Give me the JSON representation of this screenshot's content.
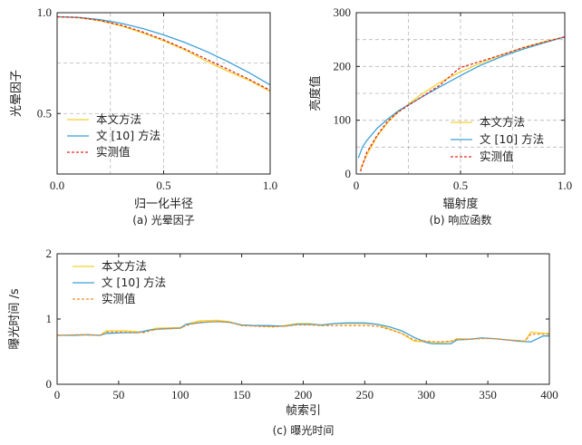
{
  "chart_data": [
    {
      "type": "line",
      "id": "a",
      "caption": "(a) 光晕因子",
      "xlabel": "归一化半径",
      "ylabel": "光晕因子",
      "xlim": [
        0,
        1
      ],
      "ylim": [
        0.2,
        1.0
      ],
      "xticks": [
        "0.0",
        "0.5",
        "1.0"
      ],
      "xtick_values": [
        0,
        0.5,
        1
      ],
      "yticks": [
        "0.5",
        "1.0"
      ],
      "ytick_values": [
        0.5,
        1.0
      ],
      "grid": true,
      "legend_position": "bottom-left",
      "series": [
        {
          "name": "本文方法",
          "color": "#f2d22e",
          "dash": false,
          "x": [
            0,
            0.1,
            0.2,
            0.3,
            0.4,
            0.5,
            0.6,
            0.7,
            0.8,
            0.9,
            1.0
          ],
          "y": [
            0.98,
            0.975,
            0.96,
            0.935,
            0.9,
            0.86,
            0.815,
            0.76,
            0.71,
            0.665,
            0.61
          ]
        },
        {
          "name": "文 [10] 方法",
          "color": "#3fa0d8",
          "dash": false,
          "x": [
            0,
            0.1,
            0.2,
            0.3,
            0.4,
            0.5,
            0.6,
            0.7,
            0.8,
            0.9,
            1.0
          ],
          "y": [
            0.98,
            0.977,
            0.966,
            0.948,
            0.922,
            0.89,
            0.852,
            0.808,
            0.758,
            0.703,
            0.642
          ]
        },
        {
          "name": "实测值",
          "color": "#e0281e",
          "dash": true,
          "x": [
            0,
            0.1,
            0.2,
            0.3,
            0.4,
            0.5,
            0.6,
            0.7,
            0.8,
            0.9,
            1.0
          ],
          "y": [
            0.98,
            0.976,
            0.962,
            0.938,
            0.905,
            0.865,
            0.82,
            0.77,
            0.72,
            0.67,
            0.615
          ]
        }
      ]
    },
    {
      "type": "line",
      "id": "b",
      "caption": "(b) 响应函数",
      "xlabel": "辐射度",
      "ylabel": "亮度值",
      "xlim": [
        0,
        1
      ],
      "ylim": [
        0,
        300
      ],
      "xticks": [
        "0",
        "0.5",
        "1.0"
      ],
      "xtick_values": [
        0,
        0.5,
        1
      ],
      "yticks": [
        "0",
        "100",
        "200",
        "300"
      ],
      "ytick_values": [
        0,
        100,
        200,
        300
      ],
      "grid": true,
      "legend_position": "bottom-right",
      "series": [
        {
          "name": "本文方法",
          "color": "#f2d22e",
          "dash": false,
          "x": [
            0.02,
            0.05,
            0.1,
            0.15,
            0.2,
            0.3,
            0.4,
            0.5,
            0.6,
            0.7,
            0.8,
            0.9,
            1.0
          ],
          "y": [
            10,
            35,
            70,
            95,
            115,
            145,
            170,
            190,
            207,
            222,
            235,
            246,
            255
          ]
        },
        {
          "name": "文 [10] 方法",
          "color": "#3fa0d8",
          "dash": false,
          "x": [
            0.01,
            0.03,
            0.05,
            0.1,
            0.15,
            0.2,
            0.3,
            0.4,
            0.5,
            0.6,
            0.7,
            0.8,
            0.9,
            1.0
          ],
          "y": [
            30,
            50,
            62,
            85,
            102,
            117,
            140,
            162,
            183,
            203,
            219,
            232,
            244,
            255
          ]
        },
        {
          "name": "实测值",
          "color": "#e0281e",
          "dash": true,
          "x": [
            0.02,
            0.05,
            0.1,
            0.15,
            0.2,
            0.3,
            0.4,
            0.48,
            0.5,
            0.6,
            0.7,
            0.8,
            0.9,
            1.0
          ],
          "y": [
            5,
            40,
            72,
            98,
            115,
            140,
            165,
            192,
            198,
            210,
            222,
            235,
            245,
            255
          ]
        }
      ]
    },
    {
      "type": "line",
      "id": "c",
      "caption": "(c) 曝光时间",
      "xlabel": "帧索引",
      "ylabel": "曝光时间 /s",
      "xlim": [
        0,
        400
      ],
      "ylim": [
        0,
        2
      ],
      "xticks": [
        "0",
        "50",
        "100",
        "150",
        "200",
        "250",
        "300",
        "350",
        "400"
      ],
      "xtick_values": [
        0,
        50,
        100,
        150,
        200,
        250,
        300,
        350,
        400
      ],
      "yticks": [
        "0",
        "1",
        "2"
      ],
      "ytick_values": [
        0,
        1,
        2
      ],
      "grid": false,
      "legend_position": "top-left",
      "series": [
        {
          "name": "本文方法",
          "color": "#f2d22e",
          "dash": false,
          "x": [
            0,
            20,
            35,
            40,
            55,
            70,
            80,
            100,
            105,
            115,
            130,
            140,
            150,
            160,
            175,
            185,
            195,
            205,
            215,
            225,
            250,
            260,
            270,
            280,
            290,
            300,
            310,
            320,
            325,
            335,
            345,
            355,
            365,
            375,
            380,
            385,
            395,
            400
          ],
          "y": [
            0.75,
            0.76,
            0.75,
            0.82,
            0.82,
            0.8,
            0.86,
            0.87,
            0.92,
            0.97,
            0.98,
            0.96,
            0.9,
            0.9,
            0.88,
            0.9,
            0.93,
            0.93,
            0.9,
            0.93,
            0.93,
            0.92,
            0.85,
            0.78,
            0.66,
            0.65,
            0.64,
            0.65,
            0.7,
            0.69,
            0.71,
            0.7,
            0.68,
            0.67,
            0.66,
            0.8,
            0.78,
            0.78
          ]
        },
        {
          "name": "文 [10] 方法",
          "color": "#3fa0d8",
          "dash": false,
          "x": [
            0,
            15,
            25,
            35,
            40,
            55,
            65,
            75,
            85,
            100,
            105,
            120,
            130,
            140,
            150,
            160,
            170,
            185,
            195,
            205,
            215,
            225,
            235,
            250,
            260,
            270,
            280,
            290,
            300,
            305,
            320,
            325,
            335,
            345,
            355,
            365,
            375,
            385,
            395,
            400
          ],
          "y": [
            0.75,
            0.75,
            0.76,
            0.75,
            0.78,
            0.79,
            0.79,
            0.83,
            0.85,
            0.86,
            0.92,
            0.95,
            0.96,
            0.95,
            0.91,
            0.9,
            0.9,
            0.89,
            0.92,
            0.92,
            0.91,
            0.93,
            0.94,
            0.94,
            0.92,
            0.88,
            0.82,
            0.72,
            0.64,
            0.62,
            0.62,
            0.68,
            0.69,
            0.71,
            0.7,
            0.68,
            0.66,
            0.65,
            0.74,
            0.74
          ]
        },
        {
          "name": "实测值",
          "color": "#f08a2c",
          "dash": true,
          "x": [
            0,
            20,
            35,
            40,
            55,
            70,
            80,
            100,
            105,
            115,
            130,
            140,
            150,
            160,
            175,
            185,
            195,
            205,
            215,
            225,
            250,
            260,
            270,
            280,
            290,
            300,
            310,
            320,
            325,
            335,
            345,
            355,
            365,
            375,
            380,
            385,
            395,
            400
          ],
          "y": [
            0.75,
            0.76,
            0.75,
            0.8,
            0.8,
            0.79,
            0.84,
            0.86,
            0.9,
            0.95,
            0.96,
            0.95,
            0.9,
            0.89,
            0.88,
            0.89,
            0.91,
            0.91,
            0.9,
            0.9,
            0.9,
            0.89,
            0.84,
            0.78,
            0.68,
            0.66,
            0.65,
            0.66,
            0.69,
            0.69,
            0.7,
            0.7,
            0.68,
            0.67,
            0.66,
            0.77,
            0.77,
            0.77
          ]
        }
      ]
    }
  ]
}
